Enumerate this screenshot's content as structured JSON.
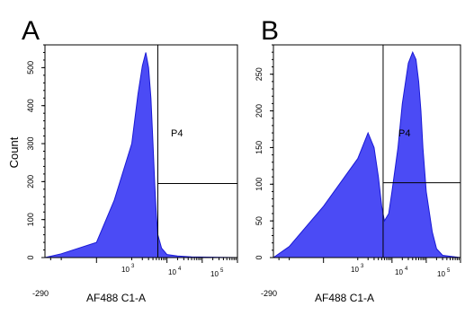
{
  "colors": {
    "fill": "#4b4bf5",
    "stroke": "#1a1ad6",
    "axis": "#000000",
    "gate": "#000000"
  },
  "chart_data": [
    {
      "type": "area",
      "panel_label": "A",
      "title": "",
      "xlabel": "AF488 C1-A",
      "ylabel": "Count",
      "x_scale": "log (biexponential)",
      "xlim": [
        -290,
        100000
      ],
      "ylim": [
        0,
        560
      ],
      "x_tick_labels": [
        "-290",
        "10",
        "3",
        "10",
        "4",
        "10",
        "5"
      ],
      "y_ticks": [
        0,
        100,
        200,
        300,
        400,
        500
      ],
      "y_tick_labels": [
        "0",
        "100",
        "200",
        "300",
        "400",
        "500"
      ],
      "gate": {
        "name": "P4",
        "x_threshold": 550,
        "y_threshold": 195
      },
      "series": [
        {
          "x": [
            -290,
            -100,
            0,
            50,
            100,
            150,
            200,
            250,
            300,
            350,
            400,
            450,
            500,
            550,
            700,
            1000,
            2000,
            5000,
            100000
          ],
          "values": [
            0,
            10,
            40,
            150,
            300,
            430,
            505,
            540,
            500,
            420,
            300,
            190,
            110,
            60,
            25,
            8,
            4,
            2,
            0
          ]
        }
      ]
    },
    {
      "type": "area",
      "panel_label": "B",
      "title": "",
      "xlabel": "AF488 C1-A",
      "ylabel": "",
      "x_scale": "log (biexponential)",
      "xlim": [
        -290,
        100000
      ],
      "ylim": [
        0,
        290
      ],
      "x_tick_labels": [
        "-290",
        "10",
        "3",
        "10",
        "4",
        "10",
        "5"
      ],
      "y_ticks": [
        0,
        50,
        100,
        150,
        200,
        250
      ],
      "y_tick_labels": [
        "0",
        "50",
        "100",
        "150",
        "200",
        "250"
      ],
      "gate": {
        "name": "P4",
        "x_threshold": 550,
        "y_threshold": 102
      },
      "series": [
        {
          "x": [
            -290,
            -100,
            0,
            100,
            200,
            300,
            400,
            500,
            600,
            800,
            1000,
            1500,
            2000,
            3000,
            4000,
            5000,
            6000,
            7000,
            8000,
            10000,
            15000,
            20000,
            30000,
            100000
          ],
          "values": [
            0,
            15,
            70,
            135,
            170,
            150,
            110,
            70,
            50,
            60,
            90,
            150,
            210,
            265,
            280,
            270,
            240,
            200,
            150,
            90,
            35,
            12,
            3,
            0
          ]
        }
      ]
    }
  ]
}
